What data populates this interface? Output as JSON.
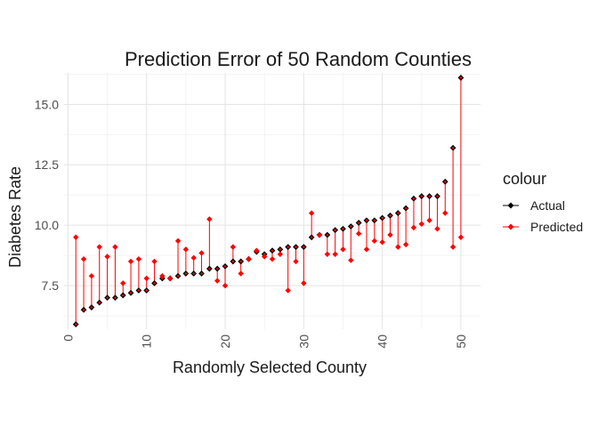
{
  "chart_data": {
    "type": "scatter",
    "title": "Prediction Error of 50 Random Counties",
    "xlabel": "Randomly Selected County",
    "ylabel": "Diabetes Rate",
    "xlim": [
      -0.5,
      52.5
    ],
    "ylim": [
      5.7,
      16.3
    ],
    "x_ticks": [
      0,
      10,
      20,
      30,
      40,
      50
    ],
    "x_tick_labels": [
      "0",
      "10",
      "20",
      "30",
      "40",
      "50"
    ],
    "y_ticks": [
      7.5,
      10.0,
      12.5,
      15.0
    ],
    "y_tick_labels": [
      "7.5",
      "10.0",
      "12.5",
      "15.0"
    ],
    "grid": true,
    "legend": {
      "title": "colour",
      "position": "right"
    },
    "series": [
      {
        "name": "Actual",
        "color": "#000000",
        "x": [
          1,
          2,
          3,
          4,
          5,
          6,
          7,
          8,
          9,
          10,
          11,
          12,
          13,
          14,
          15,
          16,
          17,
          18,
          19,
          20,
          21,
          22,
          23,
          24,
          25,
          26,
          27,
          28,
          29,
          30,
          31,
          32,
          33,
          34,
          35,
          36,
          37,
          38,
          39,
          40,
          41,
          42,
          43,
          44,
          45,
          46,
          47,
          48,
          49,
          50
        ],
        "y": [
          5.9,
          6.5,
          6.6,
          6.8,
          7.0,
          7.0,
          7.1,
          7.2,
          7.3,
          7.3,
          7.6,
          7.8,
          7.8,
          7.9,
          8.0,
          8.0,
          8.0,
          8.2,
          8.2,
          8.3,
          8.5,
          8.5,
          8.6,
          8.9,
          8.8,
          8.95,
          9.0,
          9.1,
          9.1,
          9.1,
          9.5,
          9.6,
          9.6,
          9.8,
          9.85,
          9.95,
          10.1,
          10.2,
          10.2,
          10.3,
          10.4,
          10.5,
          10.7,
          11.1,
          11.2,
          11.2,
          11.2,
          11.8,
          13.2,
          16.1
        ]
      },
      {
        "name": "Predicted",
        "color": "#ff0000",
        "x": [
          1,
          2,
          3,
          4,
          5,
          6,
          7,
          8,
          9,
          10,
          11,
          12,
          13,
          14,
          15,
          16,
          17,
          18,
          19,
          20,
          21,
          22,
          23,
          24,
          25,
          26,
          27,
          28,
          29,
          30,
          31,
          32,
          33,
          34,
          35,
          36,
          37,
          38,
          39,
          40,
          41,
          42,
          43,
          44,
          45,
          46,
          47,
          48,
          49,
          50
        ],
        "y": [
          9.5,
          8.6,
          7.9,
          9.1,
          8.7,
          9.1,
          7.6,
          8.5,
          8.6,
          7.8,
          8.5,
          7.9,
          7.8,
          9.35,
          9.0,
          8.65,
          8.85,
          10.25,
          7.7,
          7.5,
          9.1,
          8.0,
          8.6,
          8.95,
          8.7,
          8.6,
          8.8,
          7.3,
          8.5,
          7.6,
          10.5,
          9.6,
          8.8,
          8.8,
          9.0,
          8.55,
          9.65,
          9.0,
          9.35,
          9.3,
          9.6,
          9.1,
          9.2,
          9.9,
          10.05,
          10.2,
          9.85,
          10.5,
          9.1,
          9.5
        ]
      }
    ]
  }
}
